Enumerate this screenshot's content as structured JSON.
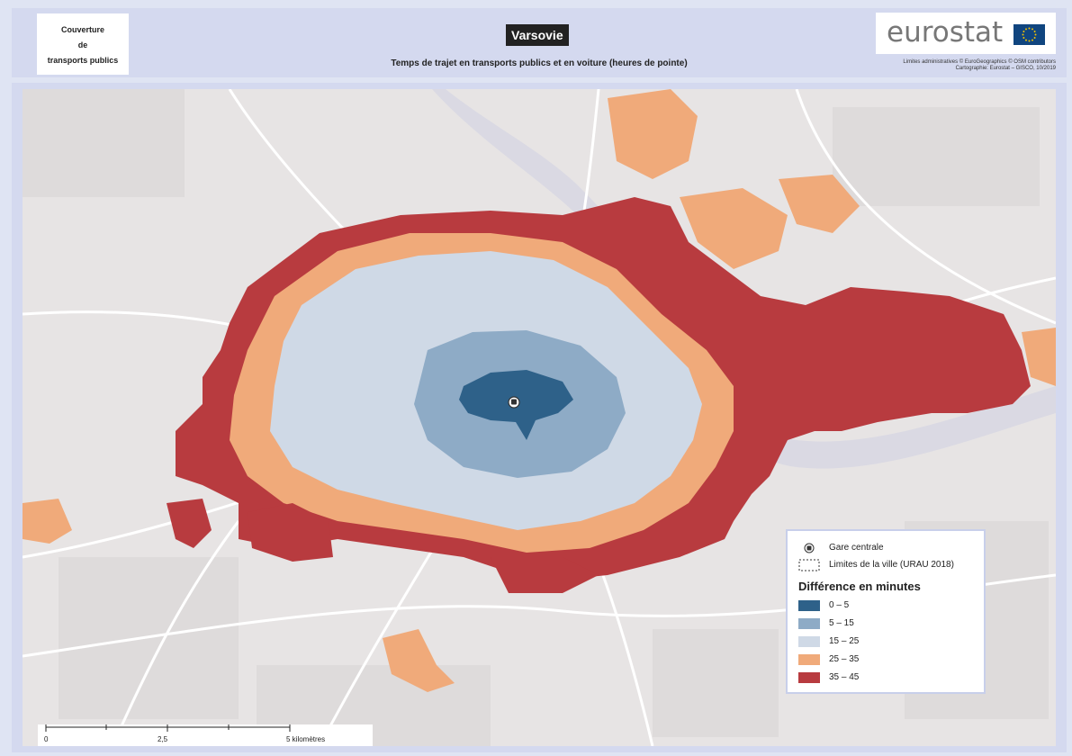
{
  "header": {
    "doc_label": [
      "Couverture",
      "de",
      "transports publics"
    ],
    "city": "Varsovie",
    "subtitle": "Temps de trajet en transports publics et en voiture (heures de pointe)",
    "logo": "eurostat",
    "credit_1": "Limites administratives © EuroGeographics © OSM contributors",
    "credit_2": "Cartographie: Eurostat – GISCO, 10/2019"
  },
  "legend": {
    "station_label": "Gare centrale",
    "boundary_label": "Limites de la ville (URAU 2018)",
    "title": "Différence en minutes",
    "classes": [
      {
        "label": "0 – 5",
        "color": "#2e6189"
      },
      {
        "label": "5 – 15",
        "color": "#8eabc6"
      },
      {
        "label": "15 – 25",
        "color": "#cfd9e6"
      },
      {
        "label": "25 – 35",
        "color": "#f0aa7a"
      },
      {
        "label": "35 – 45",
        "color": "#b83b3f"
      }
    ]
  },
  "scalebar": {
    "ticks": [
      "0",
      "2,5",
      "5 kilomètres"
    ]
  },
  "colors": {
    "background_map": "#e7e4e4",
    "roads": "#ffffff",
    "river": "#dcdbe6",
    "frame": "#d4d9ef",
    "eu_flag": "#10457f",
    "eu_stars": "#f3c200"
  },
  "icons": {
    "station": "train-station-icon",
    "boundary": "dashed-boundary-icon"
  }
}
